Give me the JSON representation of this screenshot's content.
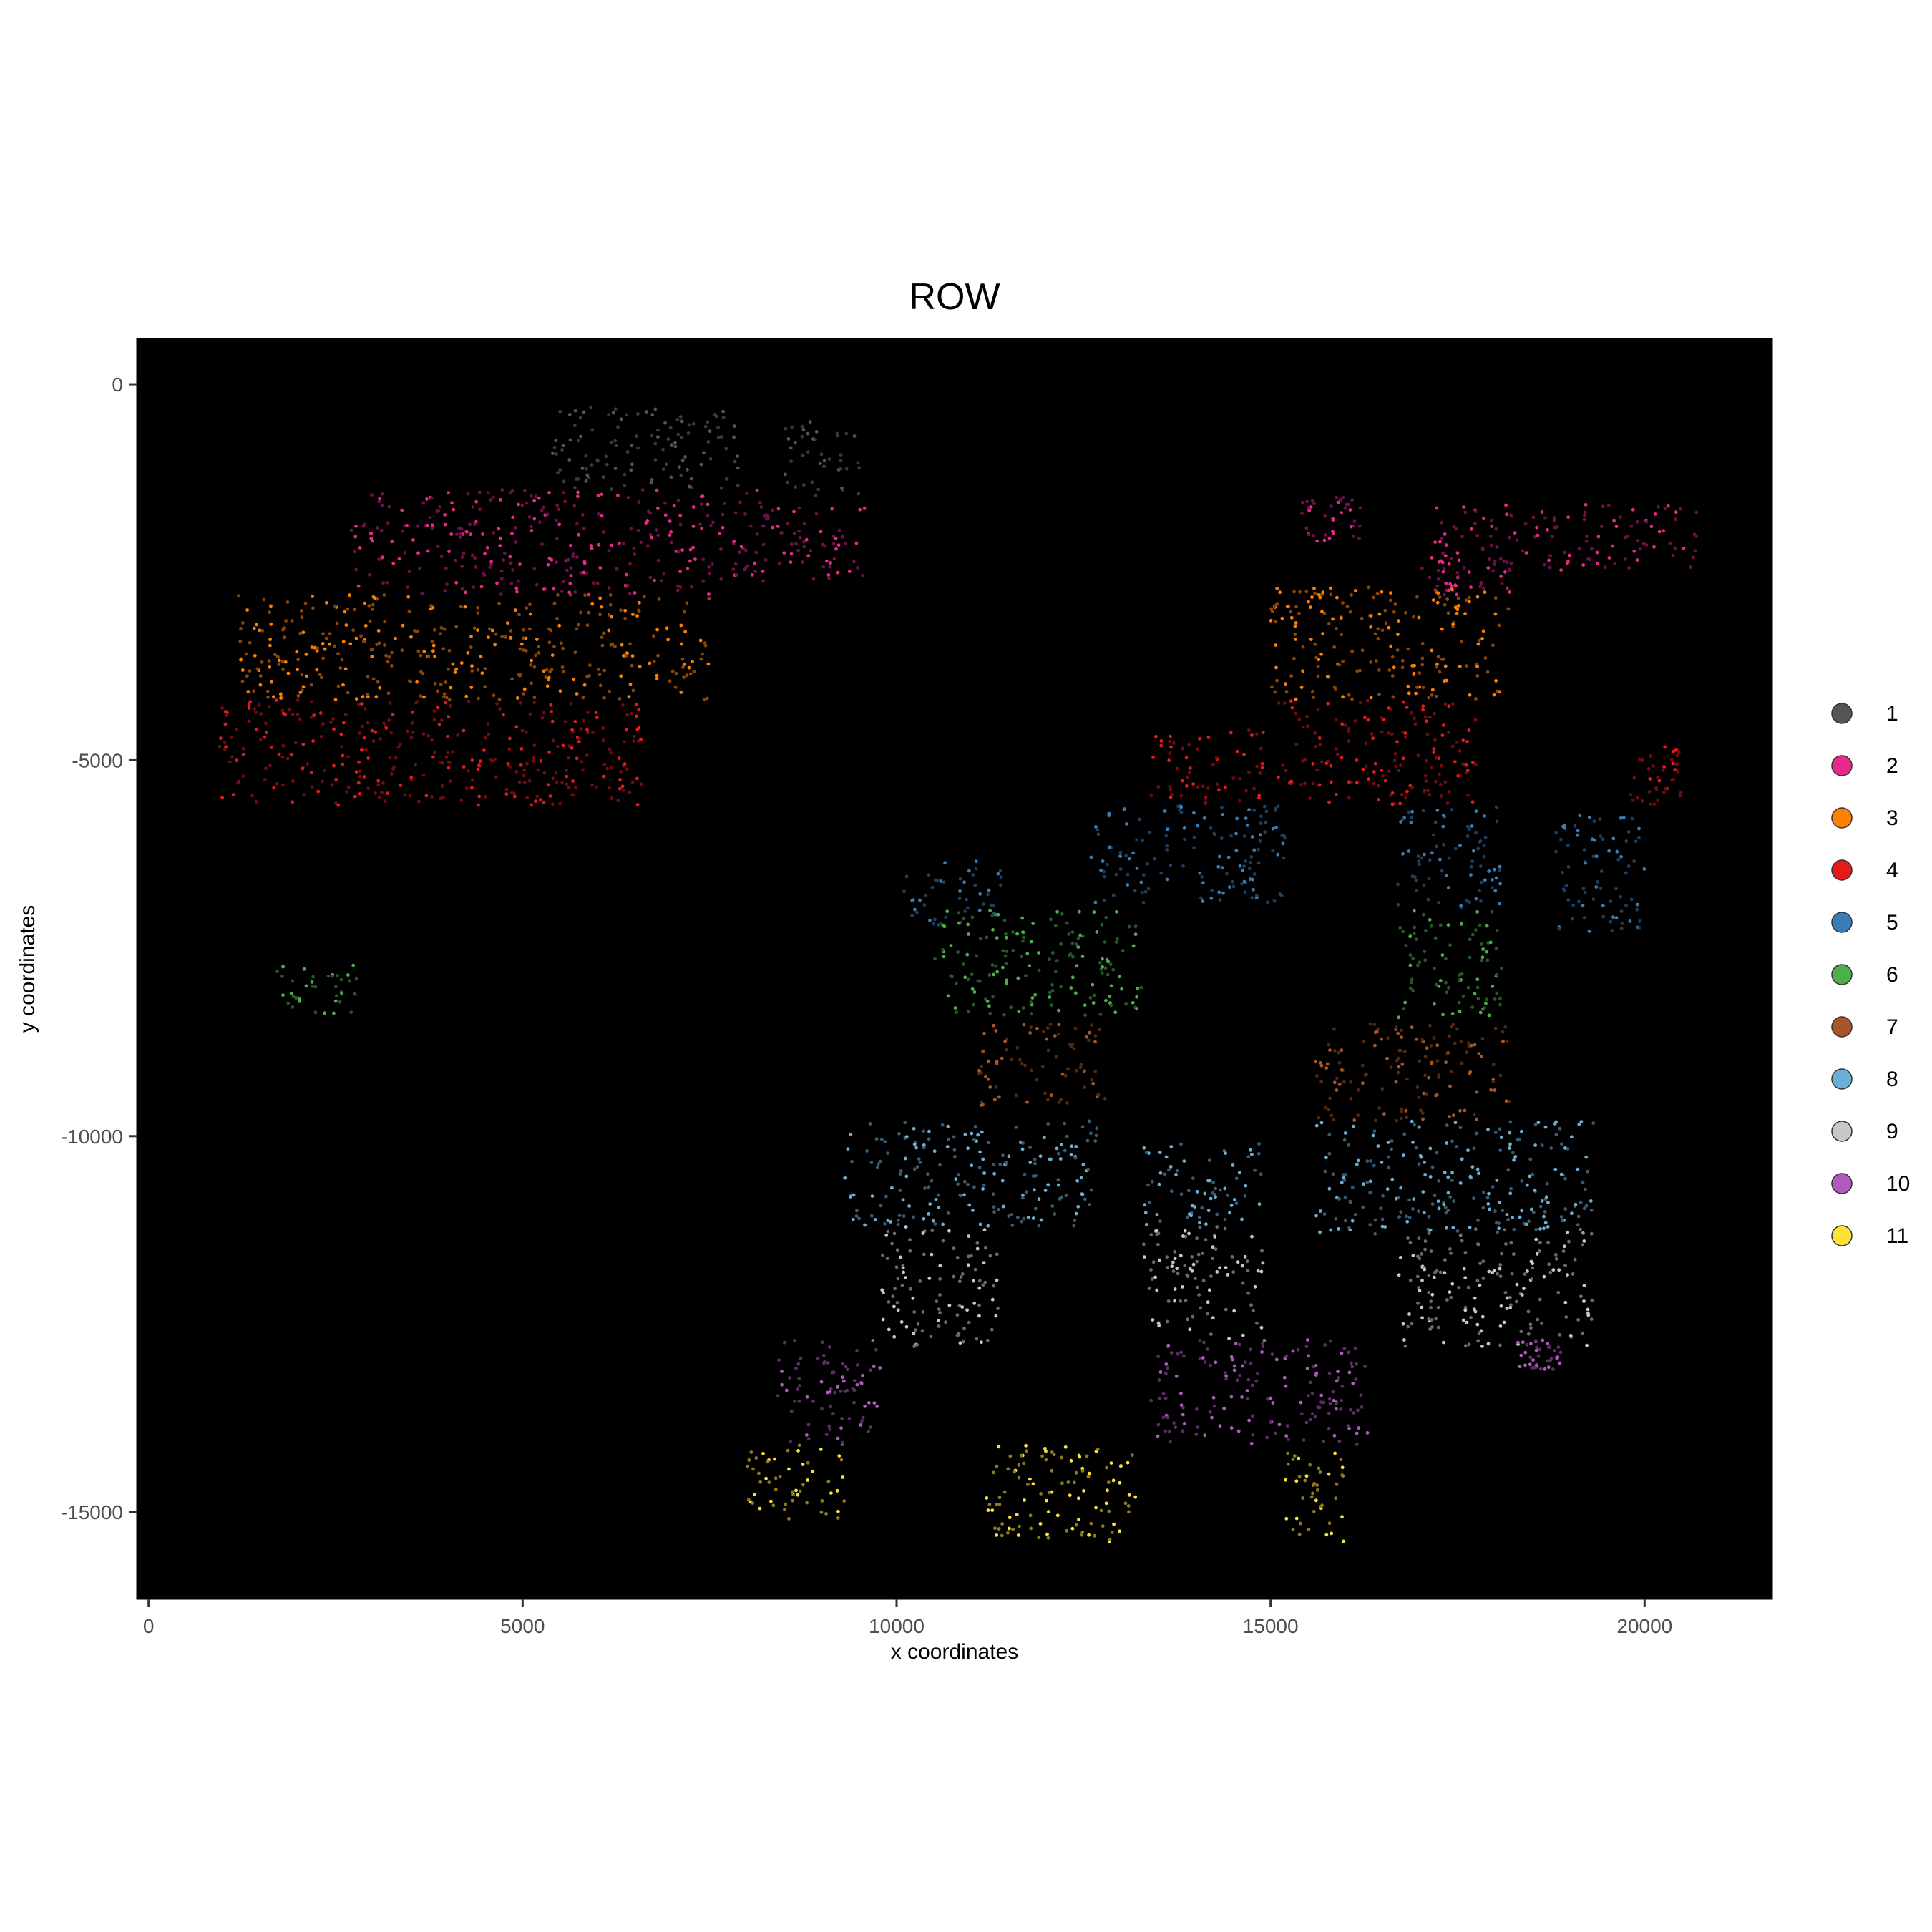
{
  "chart_data": {
    "type": "scatter",
    "title": "ROW",
    "xlabel": "x coordinates",
    "ylabel": "y coordinates",
    "xlim": [
      -150,
      21700
    ],
    "ylim": [
      -16150,
      600
    ],
    "x_ticks": [
      0,
      5000,
      10000,
      15000,
      20000
    ],
    "y_ticks": [
      0,
      -5000,
      -10000,
      -15000
    ],
    "x_tick_labels": [
      "0",
      "5000",
      "10000",
      "15000",
      "20000"
    ],
    "y_tick_labels": [
      "0",
      "-5000",
      "-10000",
      "-15000"
    ],
    "plot_background": "#000000",
    "grid": false,
    "legend_position": "right",
    "series": [
      {
        "name": "1",
        "color": "#555555",
        "dim_color": "#3a3a3a",
        "regions": [
          [
            5400,
            7900,
            -1400,
            -300
          ],
          [
            8500,
            9500,
            -1500,
            -500
          ]
        ]
      },
      {
        "name": "2",
        "color": "#e7298a",
        "dim_color": "#6e1046",
        "regions": [
          [
            2700,
            8300,
            -2800,
            -1400
          ],
          [
            8300,
            9600,
            -2600,
            -1600
          ],
          [
            15400,
            16200,
            -2100,
            -1500
          ],
          [
            17200,
            20700,
            -2500,
            -1600
          ],
          [
            17000,
            18200,
            -2800,
            -2300
          ]
        ]
      },
      {
        "name": "3",
        "color": "#ff7f00",
        "dim_color": "#8a4405",
        "regions": [
          [
            1200,
            7500,
            -4200,
            -2800
          ],
          [
            15000,
            18200,
            -4200,
            -2700
          ]
        ]
      },
      {
        "name": "4",
        "color": "#e41a1c",
        "dim_color": "#700c0e",
        "regions": [
          [
            900,
            6600,
            -5600,
            -4200
          ],
          [
            13400,
            14900,
            -5600,
            -4600
          ],
          [
            15100,
            17800,
            -5600,
            -4200
          ],
          [
            19800,
            20500,
            -5600,
            -4800
          ]
        ]
      },
      {
        "name": "5",
        "color": "#377eb8",
        "dim_color": "#1d3f5e",
        "regions": [
          [
            10100,
            11400,
            -7200,
            -6300
          ],
          [
            12600,
            15200,
            -6900,
            -5600
          ],
          [
            16700,
            18100,
            -7000,
            -5600
          ],
          [
            18800,
            20000,
            -7300,
            -5700
          ]
        ]
      },
      {
        "name": "6",
        "color": "#4daf4a",
        "dim_color": "#235a23",
        "regions": [
          [
            10500,
            13300,
            -8400,
            -7000
          ],
          [
            16700,
            18100,
            -8500,
            -7000
          ],
          [
            1700,
            2900,
            -8400,
            -7700
          ]
        ]
      },
      {
        "name": "7",
        "color": "#a65628",
        "dim_color": "#55280e",
        "regions": [
          [
            11100,
            12800,
            -9600,
            -8500
          ],
          [
            15600,
            18200,
            -9800,
            -8500
          ]
        ]
      },
      {
        "name": "8",
        "color": "#6baed6",
        "dim_color": "#3a5a70",
        "regions": [
          [
            9300,
            12700,
            -11200,
            -9800
          ],
          [
            13300,
            14900,
            -11200,
            -10100
          ],
          [
            15600,
            19400,
            -11300,
            -9800
          ]
        ]
      },
      {
        "name": "9",
        "color": "#c8c8c8",
        "dim_color": "#6a6a6a",
        "regions": [
          [
            9800,
            11400,
            -12800,
            -11200
          ],
          [
            13300,
            14900,
            -12700,
            -11200
          ],
          [
            16700,
            19300,
            -12800,
            -11200
          ]
        ]
      },
      {
        "name": "10",
        "color": "#b15ac0",
        "dim_color": "#5a2e62",
        "regions": [
          [
            8400,
            9800,
            -14100,
            -12700
          ],
          [
            13400,
            16300,
            -14100,
            -12700
          ],
          [
            18300,
            18900,
            -13100,
            -12700
          ]
        ]
      },
      {
        "name": "11",
        "color": "#ffe135",
        "dim_color": "#8a7a20",
        "regions": [
          [
            8000,
            9300,
            -15100,
            -14100
          ],
          [
            11200,
            13200,
            -15400,
            -14100
          ],
          [
            15200,
            16000,
            -15400,
            -14100
          ]
        ]
      }
    ]
  }
}
